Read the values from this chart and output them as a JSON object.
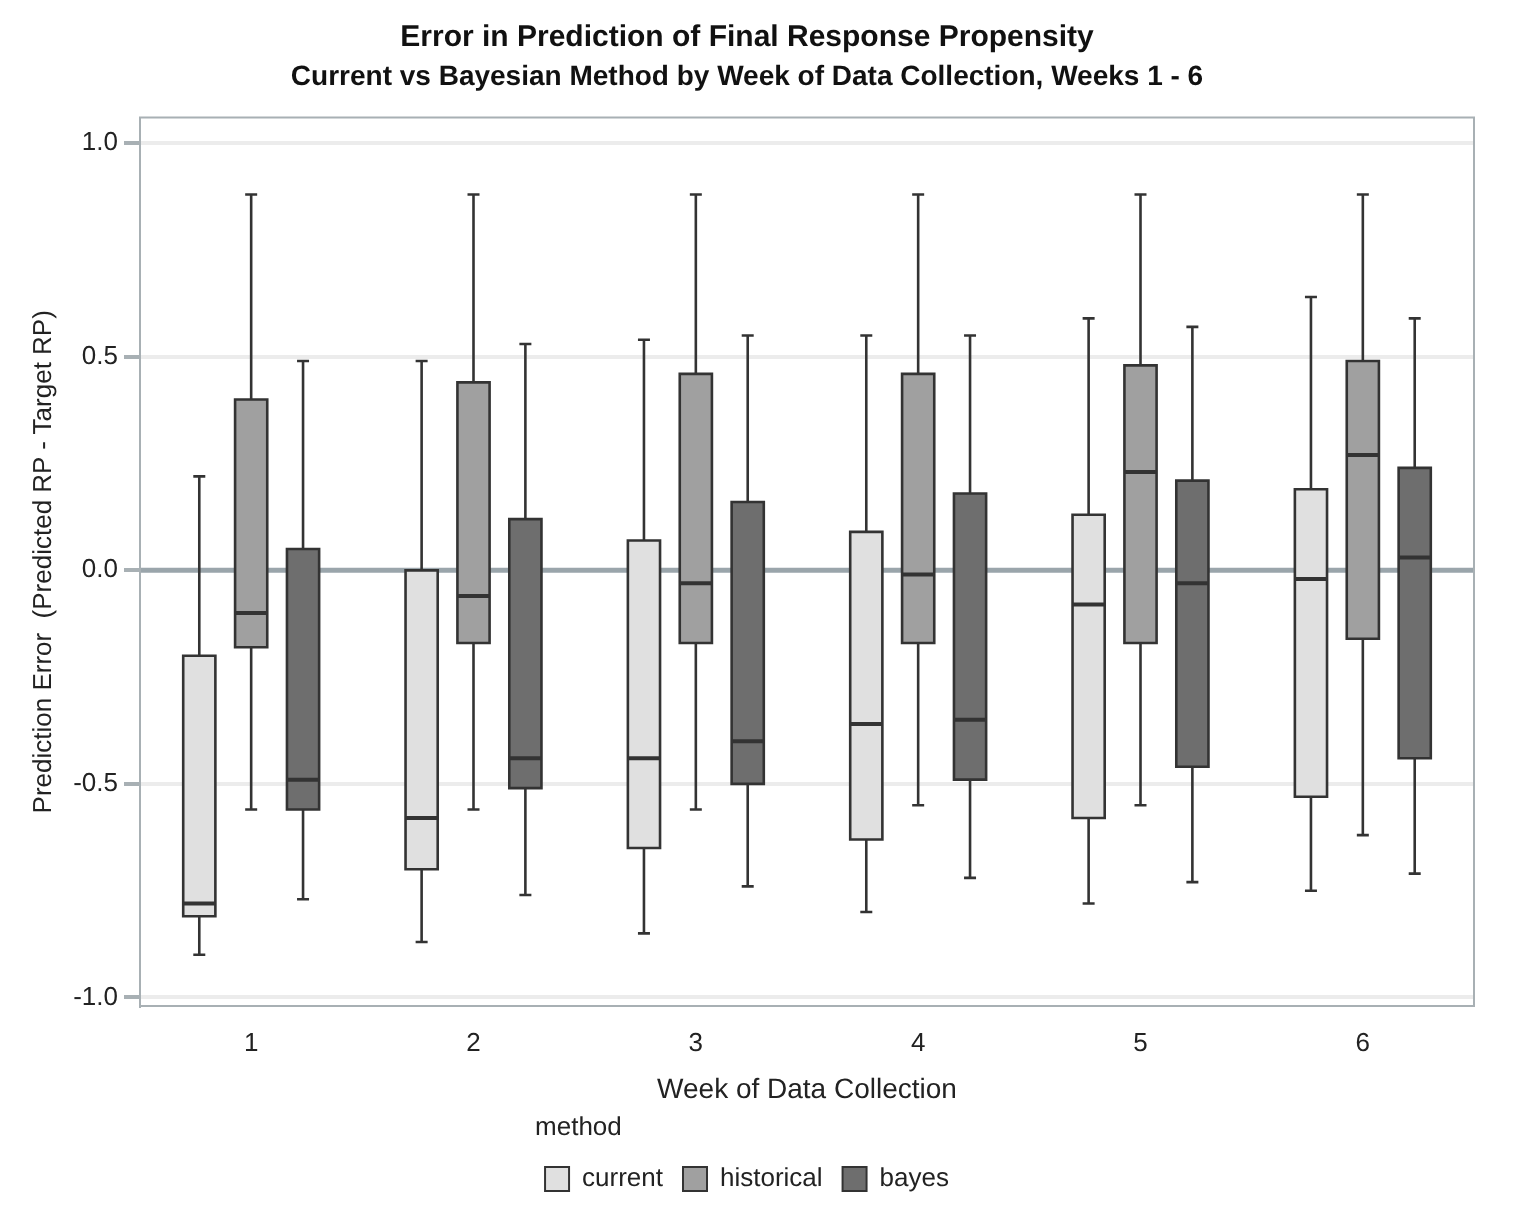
{
  "chart_data": {
    "type": "box",
    "title": "Error in Prediction of Final Response Propensity",
    "subtitle": "Current vs Bayesian Method by Week of Data Collection, Weeks 1 - 6",
    "xlabel": "Week of Data Collection",
    "ylabel": "Prediction Error  (Predicted RP - Target RP)",
    "legend_title": "method",
    "legend": "bottom",
    "grid": "y",
    "categories": [
      "1",
      "2",
      "3",
      "4",
      "5",
      "6"
    ],
    "ylim": [
      -1.02,
      1.06
    ],
    "yticks": [
      {
        "value": -1,
        "label": "-1.0"
      },
      -0.5,
      {
        "value": 0,
        "label": "0.0"
      },
      0.5,
      {
        "value": 1,
        "label": "1.0"
      }
    ],
    "ref_lines": [
      {
        "axis": "y",
        "value": 0,
        "label": null,
        "color": "#9aa5ab"
      }
    ],
    "series": [
      {
        "name": "current",
        "color": "#e0e0e0",
        "boxes": [
          {
            "low": -0.9,
            "q1": -0.81,
            "median": -0.78,
            "q3": -0.2,
            "high": 0.22
          },
          {
            "low": -0.87,
            "q1": -0.7,
            "median": -0.58,
            "q3": 0.0,
            "high": 0.49
          },
          {
            "low": -0.85,
            "q1": -0.65,
            "median": -0.44,
            "q3": 0.07,
            "high": 0.54
          },
          {
            "low": -0.8,
            "q1": -0.63,
            "median": -0.36,
            "q3": 0.09,
            "high": 0.55
          },
          {
            "low": -0.78,
            "q1": -0.58,
            "median": -0.08,
            "q3": 0.13,
            "high": 0.59
          },
          {
            "low": -0.75,
            "q1": -0.53,
            "median": -0.02,
            "q3": 0.19,
            "high": 0.64
          }
        ]
      },
      {
        "name": "historical",
        "color": "#a0a0a0",
        "boxes": [
          {
            "low": -0.56,
            "q1": -0.18,
            "median": -0.1,
            "q3": 0.4,
            "high": 0.88
          },
          {
            "low": -0.56,
            "q1": -0.17,
            "median": -0.06,
            "q3": 0.44,
            "high": 0.88
          },
          {
            "low": -0.56,
            "q1": -0.17,
            "median": -0.03,
            "q3": 0.46,
            "high": 0.88
          },
          {
            "low": -0.55,
            "q1": -0.17,
            "median": -0.01,
            "q3": 0.46,
            "high": 0.88
          },
          {
            "low": -0.55,
            "q1": -0.17,
            "median": 0.23,
            "q3": 0.48,
            "high": 0.88
          },
          {
            "low": -0.62,
            "q1": -0.16,
            "median": 0.27,
            "q3": 0.49,
            "high": 0.88
          }
        ]
      },
      {
        "name": "bayes",
        "color": "#6e6e6e",
        "boxes": [
          {
            "low": -0.77,
            "q1": -0.56,
            "median": -0.49,
            "q3": 0.05,
            "high": 0.49
          },
          {
            "low": -0.76,
            "q1": -0.51,
            "median": -0.44,
            "q3": 0.12,
            "high": 0.53
          },
          {
            "low": -0.74,
            "q1": -0.5,
            "median": -0.4,
            "q3": 0.16,
            "high": 0.55
          },
          {
            "low": -0.72,
            "q1": -0.49,
            "median": -0.35,
            "q3": 0.18,
            "high": 0.55
          },
          {
            "low": -0.73,
            "q1": -0.46,
            "median": -0.03,
            "q3": 0.21,
            "high": 0.57
          },
          {
            "low": -0.71,
            "q1": -0.44,
            "median": 0.03,
            "q3": 0.24,
            "high": 0.59
          }
        ]
      }
    ]
  }
}
